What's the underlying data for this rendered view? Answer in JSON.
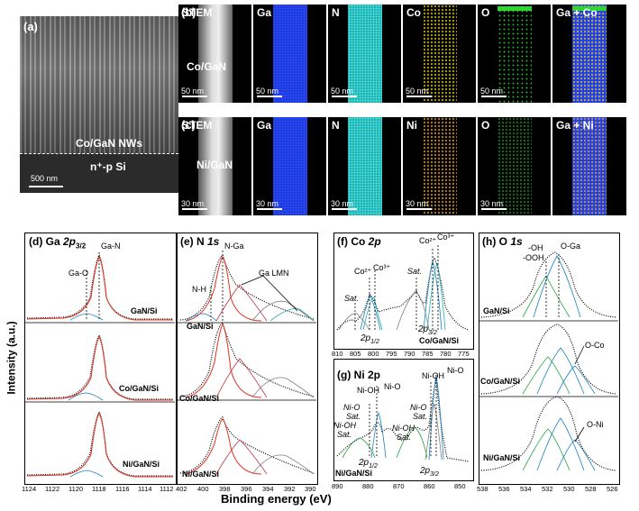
{
  "panel_a": {
    "letter": "(a)",
    "label_nws": "Co/GaN NWs",
    "label_si": "n⁺-p Si",
    "scale": "500 nm"
  },
  "panel_b": {
    "letter": "(b)",
    "row_label": "Co/GaN",
    "tiles": [
      "STEM",
      "Ga",
      "N",
      "Co",
      "O",
      "Ga + Co"
    ],
    "scale": "50 nm"
  },
  "panel_c": {
    "letter": "(c)",
    "row_label": "Ni/GaN",
    "tiles": [
      "STEM",
      "Ga",
      "N",
      "Ni",
      "O",
      "Ga + Ni"
    ],
    "scale": "30 nm"
  },
  "colors": {
    "ga": "#1a3ae0",
    "n": "#22c0c0",
    "co": "#d9c520",
    "o_b": "#2cc82c",
    "ni": "#e0a020",
    "o_c": "#1a8a2a"
  },
  "plots": {
    "d": {
      "title_prefix": "(d) Ga ",
      "title_orbital": "2p",
      "title_sub": "3/2",
      "ann_ga_n": "Ga-N",
      "ann_ga_o": "Ga-O",
      "samples": [
        "GaN/Si",
        "Co/GaN/Si",
        "Ni/GaN/Si"
      ],
      "ticks": [
        "1124",
        "1122",
        "1120",
        "1118",
        "1116",
        "1114",
        "1112"
      ]
    },
    "e": {
      "title_prefix": "(e) N ",
      "title_orbital": "1s",
      "ann_n_ga": "N-Ga",
      "ann_n_h": "N-H",
      "ann_ga_lmn": "Ga LMN",
      "samples": [
        "GaN/Si",
        "Co/GaN/Si",
        "Ni/GaN/Si"
      ],
      "ticks": [
        "402",
        "400",
        "398",
        "396",
        "394",
        "392",
        "390"
      ]
    },
    "f": {
      "title_prefix": "(f) Co ",
      "title_orbital": "2p",
      "ann_co2": "Co²⁺",
      "ann_co3": "Co³⁺",
      "ann_sat": "Sat.",
      "ann_2p12": "2p",
      "sub_12": "1/2",
      "ann_2p32": "2p",
      "sub_32": "3/2",
      "sample": "Co/GaN/Si",
      "ticks": [
        "810",
        "805",
        "800",
        "795",
        "790",
        "785",
        "780",
        "775"
      ]
    },
    "g": {
      "title": "(g) Ni 2p",
      "ann_ni_oh": "Ni-OH",
      "ann_ni_o": "Ni-O",
      "ann_ni_o_sat1": "Ni-O",
      "ann_ni_o_sat2": "Sat.",
      "ann_ni_oh_sat1": "Ni-OH",
      "ann_ni_oh_sat2": "Sat.",
      "ann_2p12": "2p",
      "sub_12": "1/2",
      "ann_2p32": "2p",
      "sub_32": "3/2",
      "sample": "Ni/GaN/Si",
      "ticks": [
        "890",
        "880",
        "870",
        "860",
        "850"
      ]
    },
    "h": {
      "title_prefix": "(h) O ",
      "title_orbital": "1s",
      "ann_oh": "-OH",
      "ann_ooh": "-OOH",
      "ann_o_ga": "O-Ga",
      "ann_o_co": "O-Co",
      "ann_o_ni": "O-Ni",
      "samples": [
        "GaN/Si",
        "Co/GaN/Si",
        "Ni/GaN/Si"
      ],
      "ticks": [
        "538",
        "536",
        "534",
        "532",
        "530",
        "528",
        "526"
      ]
    }
  },
  "axes": {
    "xlabel": "Binding energy (eV)",
    "ylabel": "Intensity (a.u.)"
  }
}
